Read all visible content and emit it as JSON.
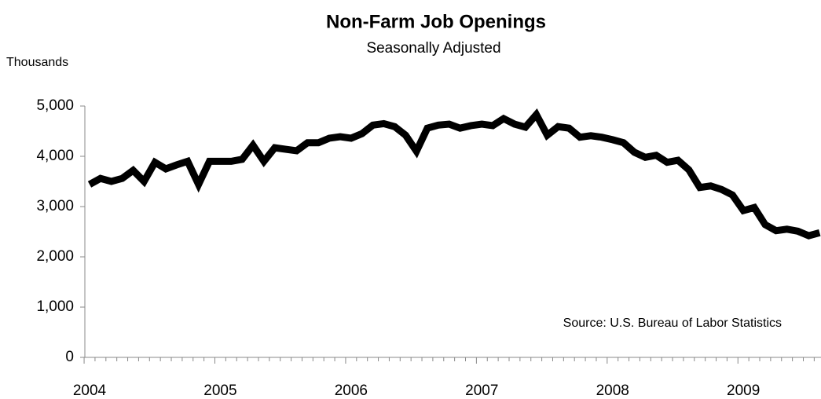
{
  "chart_data": {
    "type": "line",
    "title": "Non-Farm Job Openings",
    "subtitle": "Seasonally Adjusted",
    "y_label": "Thousands",
    "annotation": "Source: U.S. Bureau of Labor Statistics",
    "categories": [
      "2004",
      null,
      null,
      null,
      null,
      null,
      null,
      null,
      null,
      null,
      null,
      null,
      "2005",
      null,
      null,
      null,
      null,
      null,
      null,
      null,
      null,
      null,
      null,
      null,
      "2006",
      null,
      null,
      null,
      null,
      null,
      null,
      null,
      null,
      null,
      null,
      null,
      "2007",
      null,
      null,
      null,
      null,
      null,
      null,
      null,
      null,
      null,
      null,
      null,
      "2008",
      null,
      null,
      null,
      null,
      null,
      null,
      null,
      null,
      null,
      null,
      null,
      "2009",
      null,
      null,
      null,
      null,
      null,
      null,
      null
    ],
    "series": [
      {
        "name": "Job Openings",
        "color": "#000000",
        "values": [
          3440,
          3560,
          3500,
          3560,
          3720,
          3500,
          3880,
          3750,
          3830,
          3900,
          3440,
          3900,
          3900,
          3900,
          3940,
          4220,
          3900,
          4170,
          4140,
          4110,
          4270,
          4270,
          4360,
          4390,
          4360,
          4450,
          4620,
          4650,
          4590,
          4420,
          4100,
          4560,
          4620,
          4640,
          4560,
          4610,
          4640,
          4610,
          4750,
          4640,
          4580,
          4830,
          4420,
          4590,
          4560,
          4380,
          4410,
          4380,
          4330,
          4270,
          4080,
          3980,
          4020,
          3880,
          3920,
          3730,
          3380,
          3410,
          3340,
          3230,
          2920,
          2980,
          2640,
          2520,
          2550,
          2510,
          2420,
          2480
        ]
      }
    ],
    "ylim": [
      0,
      5000
    ],
    "yticks": [
      0,
      {
        "value": 1000,
        "label": "1,000"
      },
      {
        "value": 2000,
        "label": "2,000"
      },
      {
        "value": 3000,
        "label": "3,000"
      },
      {
        "value": 4000,
        "label": "4,000"
      },
      {
        "value": 5000,
        "label": "5,000"
      }
    ],
    "grid": false
  }
}
